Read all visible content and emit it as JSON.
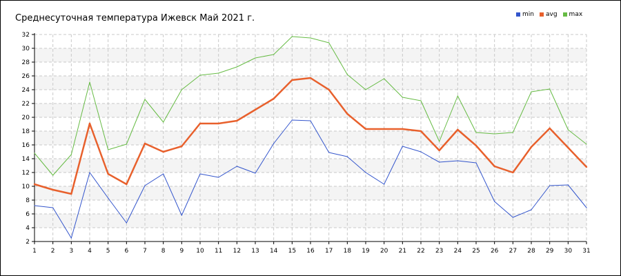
{
  "chart_data": {
    "type": "line",
    "title": "Среднесуточная температура Ижевск  Май 2021 г.",
    "x": [
      1,
      2,
      3,
      4,
      5,
      6,
      7,
      8,
      9,
      10,
      11,
      12,
      13,
      14,
      15,
      16,
      17,
      18,
      19,
      20,
      21,
      22,
      23,
      24,
      25,
      26,
      27,
      28,
      29,
      30,
      31
    ],
    "ylim": [
      2,
      32
    ],
    "yticks": [
      2,
      4,
      6,
      8,
      10,
      12,
      14,
      16,
      18,
      20,
      22,
      24,
      26,
      28,
      30,
      32
    ],
    "grid": true,
    "legend_placement": "top-right",
    "series": [
      {
        "name": "min",
        "color": "#3355cc",
        "values": [
          7.2,
          6.9,
          2.5,
          12.0,
          8.3,
          4.7,
          10.1,
          11.8,
          5.8,
          11.8,
          11.3,
          12.9,
          11.9,
          16.2,
          19.6,
          19.5,
          14.9,
          14.3,
          12.0,
          10.3,
          15.8,
          15.0,
          13.5,
          13.7,
          13.4,
          7.8,
          5.5,
          6.6,
          10.1,
          10.2,
          6.9
        ]
      },
      {
        "name": "avg",
        "color": "#e8602c",
        "values": [
          10.3,
          9.5,
          8.9,
          19.1,
          11.8,
          10.3,
          16.2,
          15.0,
          15.8,
          19.1,
          19.1,
          19.5,
          21.1,
          22.7,
          25.4,
          25.7,
          24.0,
          20.5,
          18.3,
          18.3,
          18.3,
          18.0,
          15.2,
          18.2,
          15.9,
          12.9,
          12.0,
          15.7,
          18.4,
          15.6,
          12.8
        ]
      },
      {
        "name": "max",
        "color": "#66bb44",
        "values": [
          14.8,
          11.6,
          14.6,
          25.1,
          15.3,
          16.1,
          22.6,
          19.3,
          24.0,
          26.1,
          26.4,
          27.3,
          28.6,
          29.1,
          31.7,
          31.5,
          30.8,
          26.2,
          24.0,
          25.6,
          22.9,
          22.4,
          16.5,
          23.1,
          17.8,
          17.6,
          17.8,
          23.7,
          24.1,
          18.2,
          16.1
        ]
      }
    ]
  }
}
